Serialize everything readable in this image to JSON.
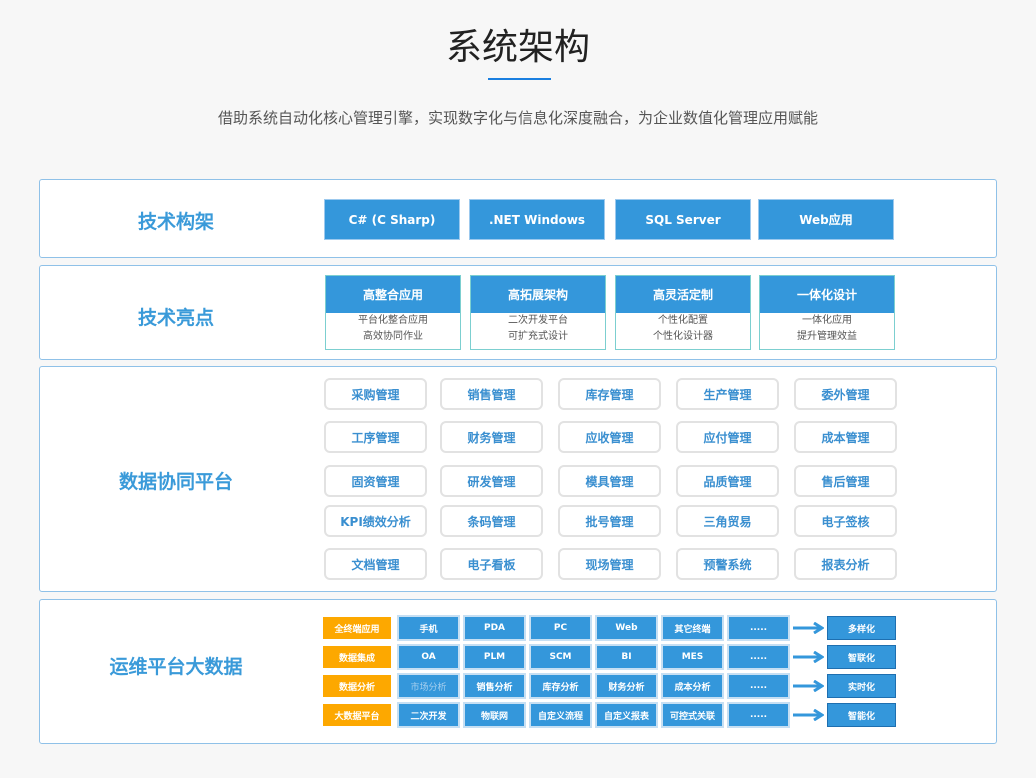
{
  "header": {
    "title": "系统架构",
    "subtitle": "借助系统自动化核心管理引擎，实现数字化与信息化深度融合，为企业数值化管理应用赋能"
  },
  "colors": {
    "accent": "#3497db",
    "label": "#3a9ad9",
    "orange": "#fda800"
  },
  "tech_stack": {
    "label": "技术构架",
    "items": [
      "C#  (C Sharp)",
      ".NET Windows",
      "SQL Server",
      "Web应用"
    ]
  },
  "highlights": {
    "label": "技术亮点",
    "cards": [
      {
        "title": "高整合应用",
        "lines": [
          "平台化整合应用",
          "高效协同作业"
        ]
      },
      {
        "title": "高拓展架构",
        "lines": [
          "二次开发平台",
          "可扩充式设计"
        ]
      },
      {
        "title": "高灵活定制",
        "lines": [
          "个性化配置",
          "个性化设计器"
        ]
      },
      {
        "title": "一体化设计",
        "lines": [
          "一体化应用",
          "提升管理效益"
        ]
      }
    ]
  },
  "platform": {
    "label": "数据协同平台",
    "modules": [
      [
        "采购管理",
        "销售管理",
        "库存管理",
        "生产管理",
        "委外管理"
      ],
      [
        "工序管理",
        "财务管理",
        "应收管理",
        "应付管理",
        "成本管理"
      ],
      [
        "固资管理",
        "研发管理",
        "模具管理",
        "品质管理",
        "售后管理"
      ],
      [
        "KPI绩效分析",
        "条码管理",
        "批号管理",
        "三角贸易",
        "电子签核"
      ],
      [
        "文档管理",
        "电子看板",
        "现场管理",
        "预警系统",
        "报表分析"
      ]
    ]
  },
  "bigdata": {
    "label": "运维平台大数据",
    "rows": [
      {
        "category": "全终端应用",
        "items": [
          "手机",
          "PDA",
          "PC",
          "Web",
          "其它终端",
          "....."
        ],
        "result": "多样化"
      },
      {
        "category": "数据集成",
        "items": [
          "OA",
          "PLM",
          "SCM",
          "BI",
          "MES",
          "....."
        ],
        "result": "智联化"
      },
      {
        "category": "数据分析",
        "items": [
          "市场分析",
          "销售分析",
          "库存分析",
          "财务分析",
          "成本分析",
          "....."
        ],
        "result": "实时化"
      },
      {
        "category": "大数据平台",
        "items": [
          "二次开发",
          "物联网",
          "自定义流程",
          "自定义报表",
          "可控式关联",
          "....."
        ],
        "result": "智能化"
      }
    ]
  }
}
